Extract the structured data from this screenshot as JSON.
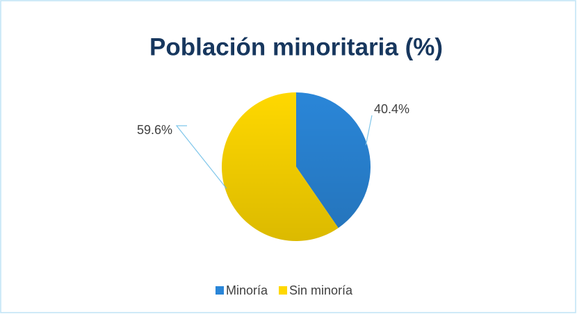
{
  "chart_data": {
    "type": "pie",
    "title": "Población minoritaria (%)",
    "categories": [
      "Minoría",
      "Sin minoría"
    ],
    "values": [
      40.4,
      59.6
    ],
    "value_labels": [
      "40.4%",
      "59.6%"
    ],
    "colors": [
      "#2a86d8",
      "#ffd800"
    ],
    "legend": "bottom"
  }
}
